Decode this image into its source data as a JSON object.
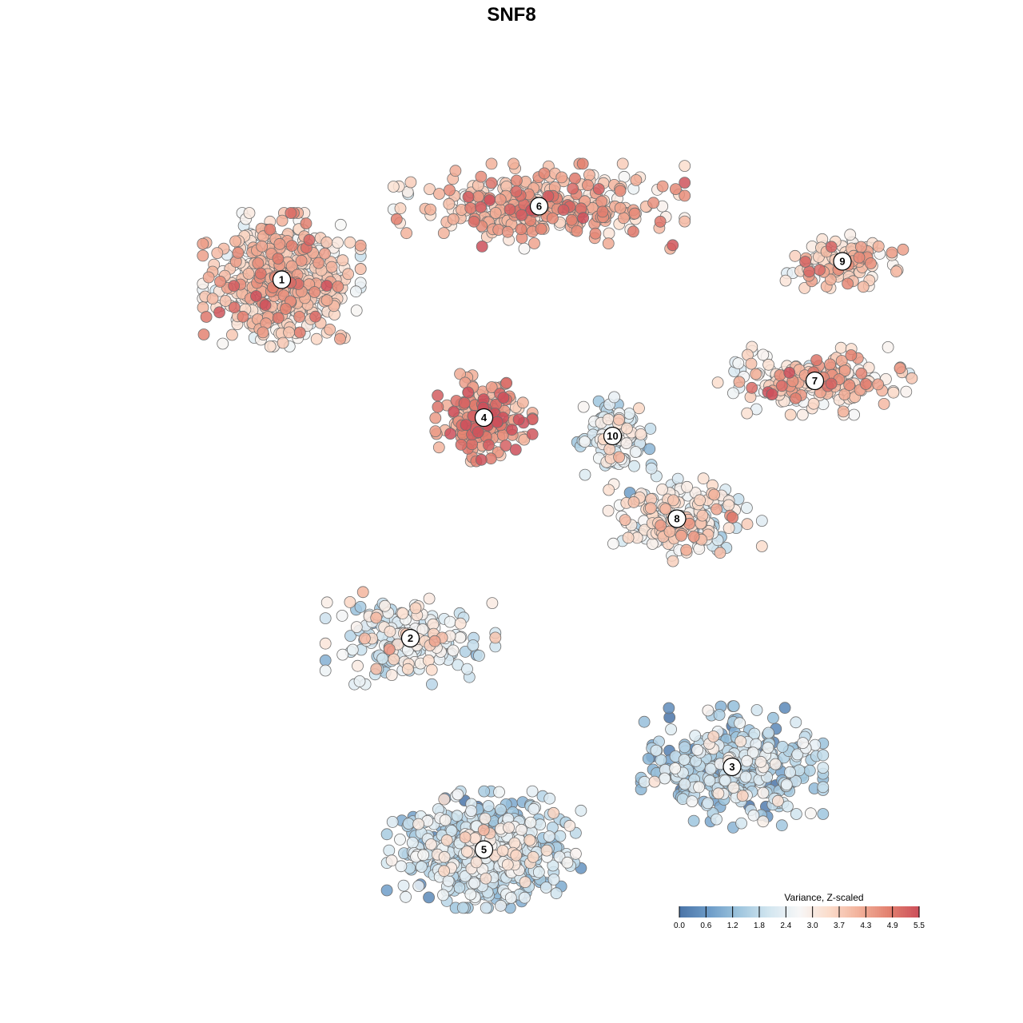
{
  "chart_data": {
    "type": "scatter",
    "title": "SNF8",
    "xlabel": "",
    "ylabel": "",
    "grid": false,
    "legend_position": "bottom-right",
    "legend": {
      "title": "Variance, Z-scaled",
      "range": [
        0,
        5.5
      ],
      "ticks": [
        "0.0",
        "0.6",
        "1.2",
        "1.8",
        "2.4",
        "3.0",
        "3.7",
        "4.3",
        "4.9",
        "5.5"
      ],
      "colors": [
        "#4a74a8",
        "#6d9cc8",
        "#9fc6de",
        "#d3e6f0",
        "#f7f7f7",
        "#fbdccb",
        "#f2b19a",
        "#e2806f",
        "#cc4f5a"
      ]
    },
    "point_style": {
      "stroke": "#707070",
      "opacity": 0.85
    },
    "clusters": [
      {
        "id": "1",
        "label": "1",
        "center": [
          -25,
          20
        ],
        "spread": [
          6.5,
          5.5
        ],
        "mean_value": 3.5,
        "n": 520
      },
      {
        "id": "2",
        "label": "2",
        "center": [
          -11,
          -19
        ],
        "spread": [
          7,
          3.8
        ],
        "mean_value": 2.4,
        "n": 190
      },
      {
        "id": "3",
        "label": "3",
        "center": [
          24,
          -33
        ],
        "spread": [
          7.5,
          5
        ],
        "mean_value": 1.5,
        "n": 380
      },
      {
        "id": "4",
        "label": "4",
        "center": [
          -3,
          5
        ],
        "spread": [
          4,
          3.6
        ],
        "mean_value": 4.4,
        "n": 200
      },
      {
        "id": "5",
        "label": "5",
        "center": [
          -3,
          -42
        ],
        "spread": [
          8,
          4.8
        ],
        "mean_value": 1.8,
        "n": 580
      },
      {
        "id": "6",
        "label": "6",
        "center": [
          3,
          28
        ],
        "spread": [
          12,
          3.5
        ],
        "mean_value": 3.9,
        "n": 330
      },
      {
        "id": "7",
        "label": "7",
        "center": [
          33,
          9
        ],
        "spread": [
          8,
          2.8
        ],
        "mean_value": 3.5,
        "n": 200
      },
      {
        "id": "8",
        "label": "8",
        "center": [
          18,
          -6
        ],
        "spread": [
          7,
          3.5
        ],
        "mean_value": 3.0,
        "n": 200
      },
      {
        "id": "9",
        "label": "9",
        "center": [
          36,
          22
        ],
        "spread": [
          5,
          2.2
        ],
        "mean_value": 3.6,
        "n": 120
      },
      {
        "id": "10",
        "label": "10",
        "center": [
          11,
          3
        ],
        "spread": [
          3.2,
          3.2
        ],
        "mean_value": 2.2,
        "n": 120
      }
    ]
  }
}
